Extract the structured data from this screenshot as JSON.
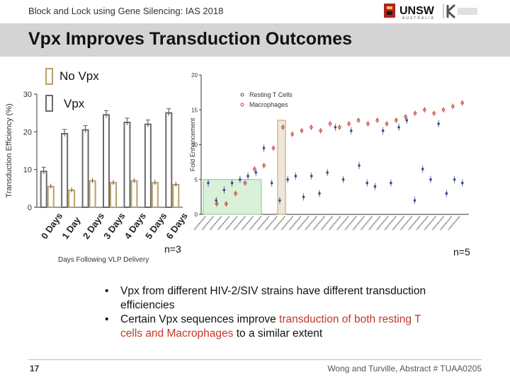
{
  "header": {
    "top_title": "Block and Lock using Gene Silencing: IAS 2018",
    "logo_text": "UNSW",
    "logo_sub": "AUSTRALIA",
    "slide_title": "Vpx Improves Transduction Outcomes"
  },
  "legend": {
    "no_vpx": "No Vpx",
    "vpx": "Vpx",
    "no_vpx_color": "#b8a06a",
    "vpx_color": "#6b6b6b"
  },
  "n_left": "n=3",
  "n_right": "n=5",
  "bullets": {
    "b1": "Vpx from different HIV-2/SIV strains have different transduction efficiencies",
    "b2_a": "Certain Vpx sequences improve ",
    "b2_hl": "transduction of both resting T cells and Macrophages",
    "b2_b": " to a similar extent"
  },
  "footer": {
    "page": "17",
    "citation": "Wong and Turville, Abstract # TUAA0205"
  },
  "chart_data": [
    {
      "type": "bar",
      "ylabel": "Transduction Efficiency (%)",
      "xlabel": "Days Following VLP Delivery",
      "categories": [
        "0 Days",
        "1 Day",
        "2 Days",
        "3 Days",
        "4 Days",
        "5 Days",
        "6 Days"
      ],
      "ylim": [
        0,
        30
      ],
      "yticks": [
        0,
        10,
        20,
        30
      ],
      "series": [
        {
          "name": "Vpx",
          "values": [
            9.5,
            19.5,
            20.5,
            24.5,
            22.5,
            22.0,
            25.0
          ]
        },
        {
          "name": "No Vpx",
          "values": [
            5.5,
            4.5,
            7.0,
            6.5,
            7.0,
            6.5,
            6.0
          ]
        }
      ]
    },
    {
      "type": "scatter",
      "ylabel": "Fold Enhancement",
      "ylim": [
        0,
        20
      ],
      "yticks": [
        0,
        5,
        10,
        15,
        20
      ],
      "series": [
        {
          "name": "Resting T Cells",
          "values": [
            4.5,
            2.0,
            3.5,
            4.5,
            5.0,
            5.5,
            6.0,
            9.5,
            4.5,
            2.0,
            5.0,
            5.5,
            2.5,
            5.5,
            3.0,
            6.0,
            12.5,
            5.0,
            12.0,
            7.0,
            4.5,
            4.0,
            12.0,
            4.5,
            12.5,
            13.5,
            2.0,
            6.5,
            5.0,
            13.0,
            3.0,
            5.0,
            4.5
          ]
        },
        {
          "name": "Macrophages",
          "values": [
            1.5,
            1.5,
            3.0,
            4.5,
            6.5,
            7.0,
            9.5,
            12.5,
            11.5,
            12.0,
            12.5,
            12.0,
            13.0,
            12.5,
            13.0,
            13.5,
            13.0,
            13.5,
            13.0,
            13.5,
            14.0,
            14.5,
            15.0,
            14.5,
            15.0,
            15.5,
            16.0
          ]
        }
      ]
    }
  ]
}
